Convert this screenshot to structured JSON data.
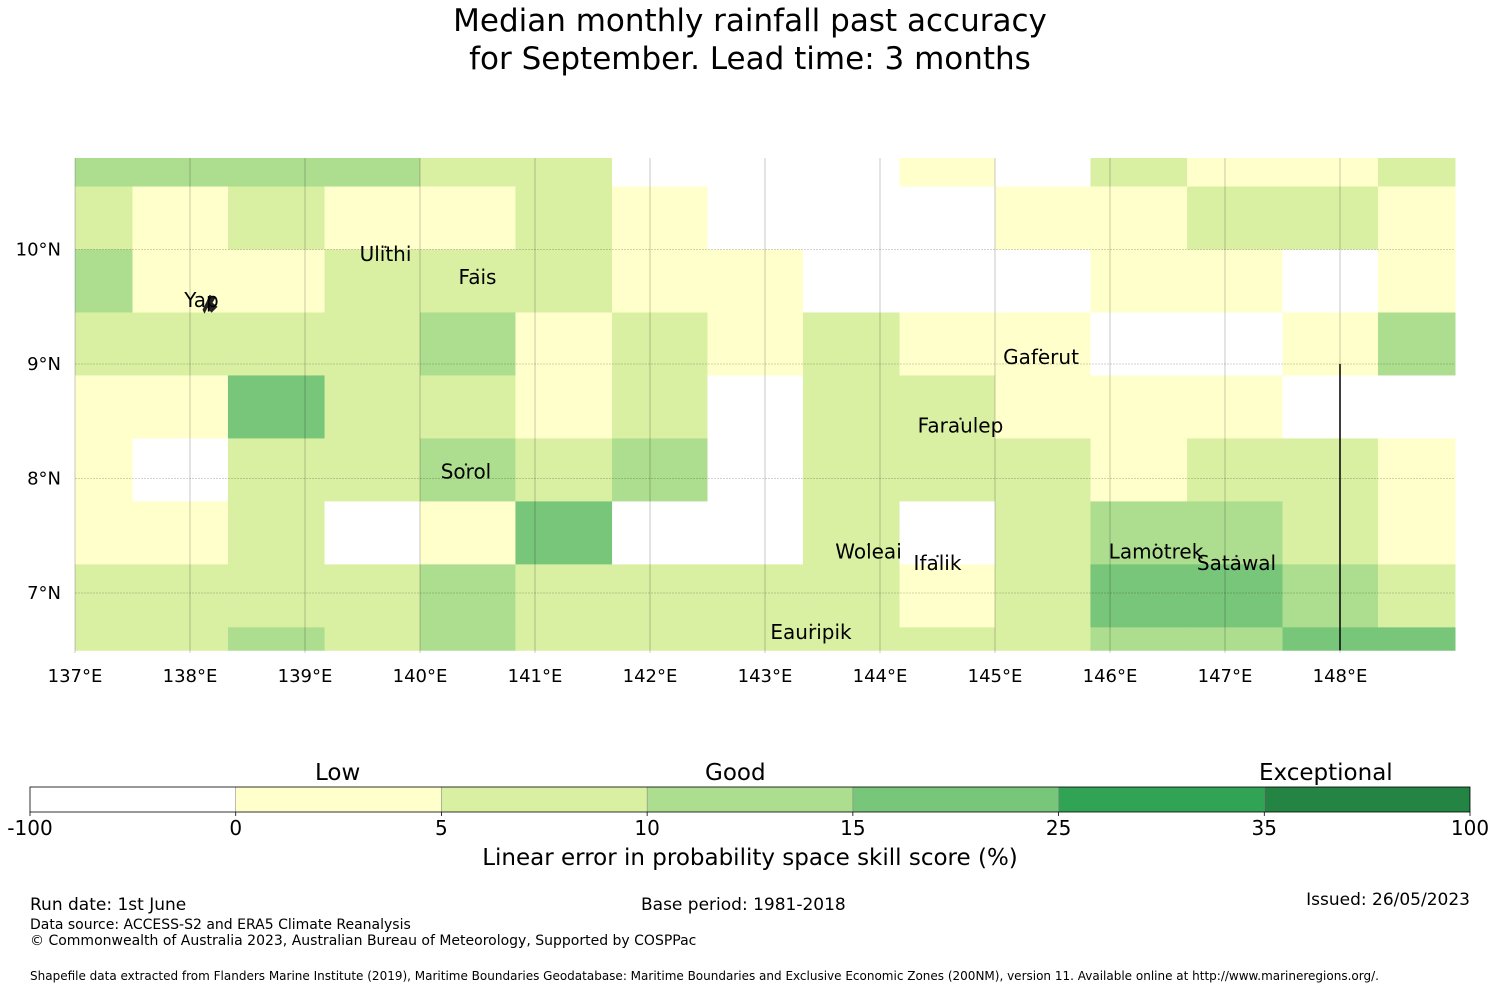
{
  "title": {
    "line1": "Median monthly rainfall past accuracy",
    "line2": "for September. Lead time: 3 months"
  },
  "map": {
    "lon_range": [
      137,
      149
    ],
    "lat_range": [
      6.5,
      10.8
    ],
    "lon_ticks": [
      {
        "value": 137,
        "label": "137°E"
      },
      {
        "value": 138,
        "label": "138°E"
      },
      {
        "value": 139,
        "label": "139°E"
      },
      {
        "value": 140,
        "label": "140°E"
      },
      {
        "value": 141,
        "label": "141°E"
      },
      {
        "value": 142,
        "label": "142°E"
      },
      {
        "value": 143,
        "label": "143°E"
      },
      {
        "value": 144,
        "label": "144°E"
      },
      {
        "value": 145,
        "label": "145°E"
      },
      {
        "value": 146,
        "label": "146°E"
      },
      {
        "value": 147,
        "label": "147°E"
      },
      {
        "value": 148,
        "label": "148°E"
      }
    ],
    "lat_ticks": [
      {
        "value": 7,
        "label": "7°N"
      },
      {
        "value": 8,
        "label": "8°N"
      },
      {
        "value": 9,
        "label": "9°N"
      },
      {
        "value": 10,
        "label": "10°N"
      }
    ],
    "places": [
      {
        "name": "Yap",
        "lon": 138.1,
        "lat": 9.5
      },
      {
        "name": "Ulithi",
        "lon": 139.7,
        "lat": 9.9
      },
      {
        "name": "Fais",
        "lon": 140.5,
        "lat": 9.7
      },
      {
        "name": "Gaferut",
        "lon": 145.4,
        "lat": 9.0
      },
      {
        "name": "Faraulep",
        "lon": 144.7,
        "lat": 8.4
      },
      {
        "name": "Sorol",
        "lon": 140.4,
        "lat": 8.0
      },
      {
        "name": "Woleai",
        "lon": 143.9,
        "lat": 7.3
      },
      {
        "name": "Ifalik",
        "lon": 144.5,
        "lat": 7.2
      },
      {
        "name": "Lamotrek",
        "lon": 146.4,
        "lat": 7.3
      },
      {
        "name": "Satawal",
        "lon": 147.1,
        "lat": 7.2
      },
      {
        "name": "Eauripik",
        "lon": 143.4,
        "lat": 6.6
      }
    ],
    "grid": {
      "lon_edges": [
        137,
        137.5,
        138.33,
        139.17,
        140,
        140.83,
        141.67,
        142.5,
        143.33,
        144.17,
        145,
        145.83,
        146.67,
        147.5,
        148.33,
        149
      ],
      "lat_edges": [
        10.8,
        10.55,
        10,
        9.45,
        8.9,
        8.35,
        7.8,
        7.25,
        6.7,
        6.5
      ],
      "classes": [
        [
          3,
          3,
          3,
          3,
          2,
          2,
          0,
          0,
          0,
          1,
          0,
          2,
          1,
          1,
          2
        ],
        [
          2,
          1,
          2,
          1,
          1,
          2,
          1,
          0,
          0,
          0,
          1,
          1,
          2,
          2,
          1
        ],
        [
          3,
          1,
          1,
          2,
          2,
          2,
          1,
          1,
          0,
          0,
          0,
          1,
          1,
          0,
          1
        ],
        [
          2,
          2,
          2,
          2,
          3,
          1,
          2,
          1,
          2,
          1,
          1,
          0,
          0,
          1,
          3
        ],
        [
          1,
          1,
          4,
          2,
          2,
          1,
          2,
          0,
          2,
          2,
          1,
          1,
          1,
          0,
          0
        ],
        [
          1,
          0,
          2,
          2,
          3,
          2,
          3,
          0,
          2,
          2,
          2,
          1,
          2,
          2,
          1
        ],
        [
          1,
          1,
          2,
          0,
          1,
          4,
          0,
          0,
          2,
          0,
          2,
          3,
          3,
          2,
          1
        ],
        [
          2,
          2,
          2,
          2,
          3,
          2,
          2,
          2,
          2,
          1,
          2,
          4,
          4,
          3,
          2
        ],
        [
          2,
          2,
          3,
          2,
          3,
          2,
          2,
          2,
          2,
          2,
          2,
          3,
          3,
          4,
          4
        ]
      ]
    },
    "boundary_line": {
      "lon": 148,
      "lat_from": 6.5,
      "lat_to": 9.0
    }
  },
  "colorbar": {
    "colors": [
      "#ffffff",
      "#ffffcc",
      "#d9f0a3",
      "#addd8e",
      "#78c679",
      "#31a354",
      "#238443"
    ],
    "tick_labels": [
      "-100",
      "0",
      "5",
      "10",
      "15",
      "25",
      "35",
      "100"
    ],
    "category_labels": {
      "low": "Low",
      "good": "Good",
      "exceptional": "Exceptional"
    },
    "axis_label": "Linear error in probability space skill score (%)"
  },
  "footer": {
    "run_date": "Run date: 1st June",
    "base_period": "Base period: 1981-2018",
    "issued": "Issued: 26/05/2023",
    "data_source": "Data source: ACCESS-S2 and ERA5 Climate Reanalysis",
    "copyright": "© Commonwealth of Australia 2023, Australian Bureau of Meteorology, Supported by COSPPac",
    "shapefile": "Shapefile data extracted from Flanders Marine Institute (2019), Maritime Boundaries Geodatabase: Maritime Boundaries and Exclusive Economic Zones (200NM), version 11. Available online at http://www.marineregions.org/."
  }
}
